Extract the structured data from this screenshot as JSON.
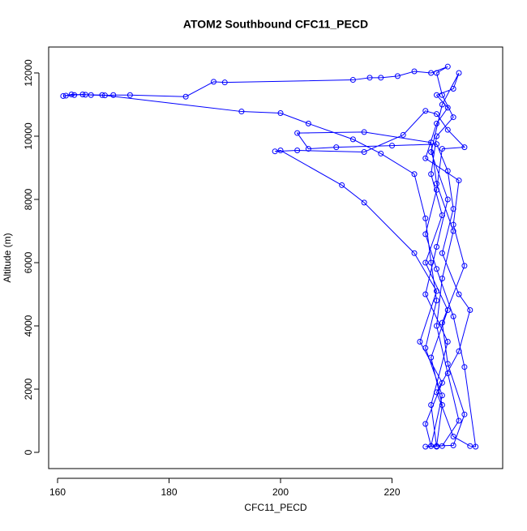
{
  "chart_data": {
    "type": "line",
    "title": "ATOM2 Southbound CFC11_PECD",
    "x_label": "CFC11_PECD",
    "y_label": "Altitude (m)",
    "markers": "circle",
    "grid": false,
    "xlim": [
      158.4,
      239.85
    ],
    "ylim": [
      -513,
      12820
    ],
    "xticks": [
      160,
      180,
      200,
      220
    ],
    "yticks": [
      0,
      2000,
      4000,
      6000,
      8000,
      10000,
      12000
    ],
    "x": [
      228,
      229,
      227,
      230,
      226,
      229,
      227,
      228,
      231,
      229,
      228,
      230,
      227,
      224,
      221,
      218,
      216,
      213,
      190,
      188,
      183,
      173,
      170,
      168.5,
      166,
      164.5,
      163,
      161.5,
      161,
      162.5,
      165,
      168,
      193,
      200,
      205,
      213,
      218,
      224,
      226,
      227,
      228,
      226,
      229,
      227,
      226,
      229,
      232,
      230,
      228,
      229,
      231,
      228,
      227,
      215,
      203,
      205,
      210,
      220,
      228,
      230,
      231,
      229,
      232,
      234,
      232,
      228,
      231,
      234,
      235,
      233,
      231,
      228,
      226,
      228,
      229,
      233,
      230,
      228,
      226,
      222,
      215,
      203,
      199,
      200,
      211,
      215,
      224,
      228,
      225,
      229,
      226,
      227,
      231,
      233,
      230,
      229,
      233,
      231,
      232,
      226,
      228,
      230,
      228,
      231,
      232,
      229,
      227,
      230,
      228,
      226,
      230,
      227,
      228
    ],
    "series": [
      {
        "color": "#0000ff",
        "values": [
          200,
          1500,
          3000,
          4500,
          6000,
          7500,
          8800,
          10000,
          10600,
          11300,
          12000,
          12200,
          12000,
          12050,
          11900,
          11850,
          11850,
          11780,
          11700,
          11720,
          11250,
          11300,
          11300,
          11290,
          11300,
          11320,
          11300,
          11280,
          11270,
          11320,
          11310,
          11300,
          10780,
          10730,
          10400,
          9900,
          9450,
          8800,
          7400,
          6000,
          4800,
          3300,
          1800,
          200,
          180,
          200,
          1000,
          2500,
          4000,
          5500,
          7000,
          8500,
          9800,
          10130,
          10100,
          9600,
          9650,
          9700,
          9750,
          8900,
          7700,
          6300,
          5000,
          4500,
          3200,
          1900,
          500,
          200,
          180,
          2700,
          4300,
          5800,
          6900,
          8300,
          9600,
          9650,
          10200,
          10700,
          10800,
          10040,
          9500,
          9550,
          9520,
          9550,
          8450,
          7900,
          6300,
          5100,
          3500,
          2200,
          900,
          200,
          220,
          1200,
          2800,
          4100,
          5900,
          7200,
          8600,
          9300,
          10400,
          10900,
          11300,
          11500,
          12000,
          11000,
          9500,
          8000,
          6500,
          5000,
          3500,
          1500,
          180
        ]
      }
    ]
  }
}
